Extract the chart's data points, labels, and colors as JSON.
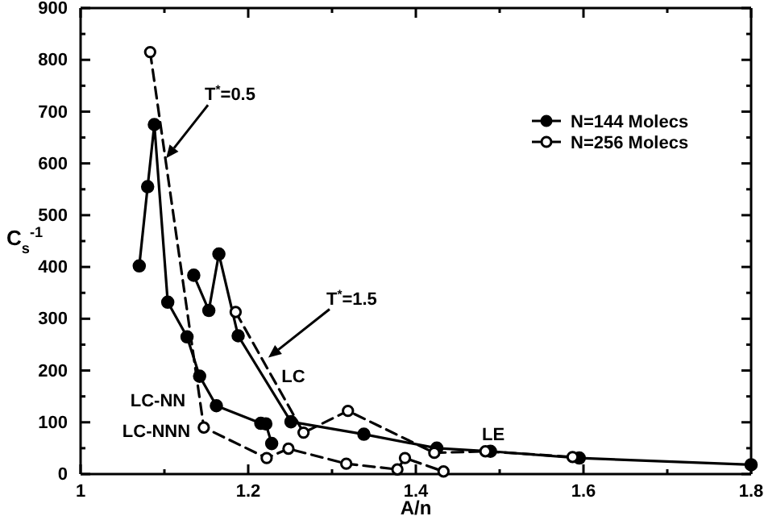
{
  "chart_data": {
    "type": "line",
    "xlabel": "A/n",
    "ylabel": "C$_{s}$$^{-1}$",
    "xlim": [
      1,
      1.8
    ],
    "ylim": [
      0,
      900
    ],
    "xticks": [
      1,
      {
        "value": 1.1,
        "label": null
      },
      1.2,
      {
        "value": 1.3,
        "label": null
      },
      1.4,
      {
        "value": 1.5,
        "label": null
      },
      1.6,
      {
        "value": 1.7,
        "label": null
      },
      1.8
    ],
    "yticks": [
      0,
      {
        "value": 50,
        "label": null
      },
      100,
      {
        "value": 150,
        "label": null
      },
      200,
      {
        "value": 250,
        "label": null
      },
      300,
      {
        "value": 350,
        "label": null
      },
      400,
      {
        "value": 450,
        "label": null
      },
      500,
      {
        "value": 550,
        "label": null
      },
      600,
      {
        "value": 650,
        "label": null
      },
      700,
      {
        "value": 750,
        "label": null
      },
      800,
      {
        "value": 850,
        "label": null
      },
      900
    ],
    "grid": false,
    "legend": "top right",
    "marker": "circle",
    "series": [
      {
        "name": "N=144 Molecs",
        "color": "#000000",
        "line_style": "solid",
        "x": [
          1.07,
          1.08,
          1.088,
          1.104,
          1.127,
          1.142,
          1.162,
          1.215,
          1.221,
          1.228
        ],
        "values": [
          402,
          555,
          675,
          332,
          265,
          189,
          132,
          98,
          97,
          59
        ]
      },
      {
        "name": "N=256 Molecs",
        "color": "#000000",
        "line_style": "dashed",
        "x": [
          1.083,
          1.147,
          1.222,
          1.248,
          1.317,
          1.378,
          1.387,
          1.433
        ],
        "values": [
          815,
          90,
          31,
          49,
          20,
          9,
          31,
          5
        ]
      },
      {
        "color": "#000000",
        "line_style": "solid",
        "x": [
          1.135,
          1.153,
          1.165,
          1.188,
          1.251,
          1.338,
          1.425,
          1.489,
          1.595,
          1.8
        ],
        "values": [
          384,
          316,
          425,
          267,
          101,
          77,
          50,
          44,
          31,
          18
        ]
      },
      {
        "color": "#000000",
        "line_style": "dashed",
        "x": [
          1.185,
          1.266,
          1.319,
          1.422,
          1.483,
          1.587
        ],
        "values": [
          313,
          80,
          122,
          41,
          44,
          33
        ]
      }
    ],
    "annotations": [
      {
        "text": "T$^{*}$=0.5",
        "x": 1.102,
        "y": 610
      },
      {
        "text": "T$^{*}$=1.5",
        "x": 1.224,
        "y": 225
      },
      "LC",
      "LC-NN",
      "LC-NNN",
      "LE"
    ]
  }
}
